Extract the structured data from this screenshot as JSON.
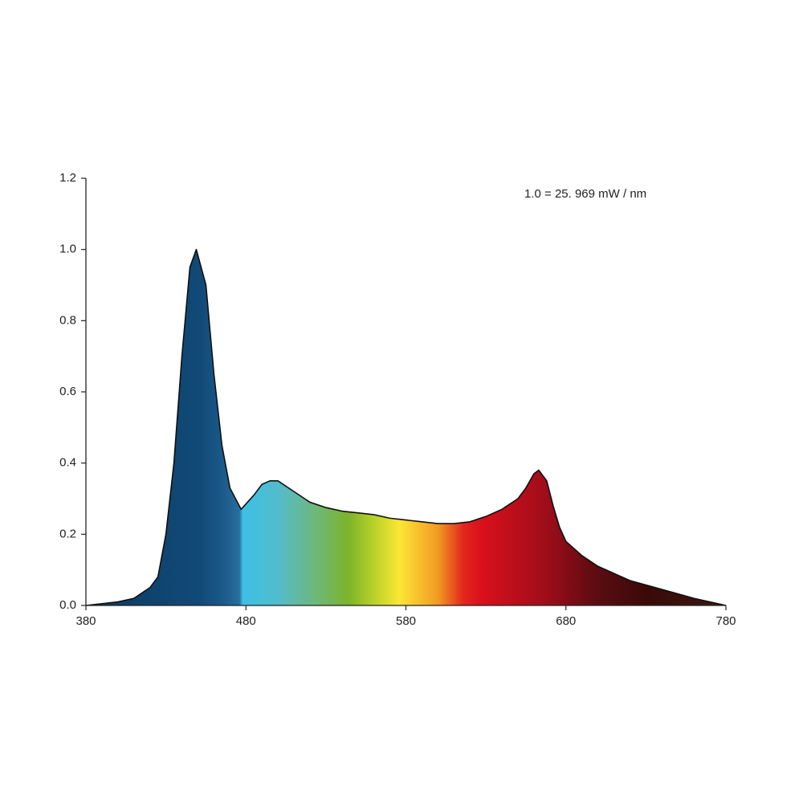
{
  "chart_data": {
    "type": "area",
    "annotation": "1.0 = 25. 969 mW / nm",
    "x": [
      380,
      390,
      400,
      410,
      420,
      425,
      430,
      435,
      440,
      445,
      449,
      455,
      460,
      465,
      470,
      477,
      485,
      490,
      495,
      500,
      510,
      520,
      530,
      540,
      550,
      560,
      570,
      580,
      590,
      600,
      610,
      620,
      630,
      640,
      650,
      655,
      660,
      663,
      668,
      672,
      676,
      680,
      690,
      700,
      720,
      740,
      760,
      780
    ],
    "values": [
      0.0,
      0.005,
      0.01,
      0.02,
      0.05,
      0.08,
      0.2,
      0.4,
      0.7,
      0.95,
      1.0,
      0.9,
      0.65,
      0.45,
      0.33,
      0.27,
      0.31,
      0.34,
      0.35,
      0.35,
      0.32,
      0.29,
      0.275,
      0.265,
      0.26,
      0.255,
      0.245,
      0.24,
      0.235,
      0.23,
      0.23,
      0.235,
      0.25,
      0.27,
      0.3,
      0.33,
      0.37,
      0.38,
      0.35,
      0.28,
      0.22,
      0.18,
      0.14,
      0.11,
      0.07,
      0.045,
      0.02,
      0.0
    ],
    "color": "#111111",
    "xlim": [
      380,
      780
    ],
    "xticks": [
      380,
      480,
      580,
      680,
      780
    ],
    "ylim": [
      0,
      1.2
    ],
    "yticks": [
      {
        "value": 0,
        "label": "0.0"
      },
      0.2,
      0.4,
      0.6,
      0.8,
      {
        "value": 1,
        "label": "1.0"
      },
      1.2
    ]
  }
}
